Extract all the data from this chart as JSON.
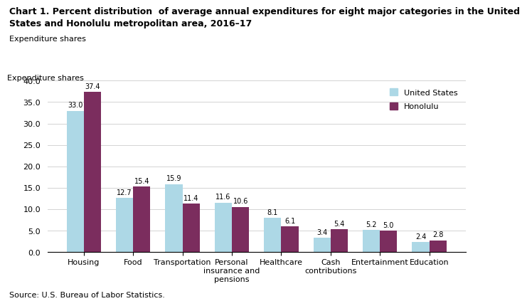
{
  "title_line1": "Chart 1. Percent distribution  of average annual expenditures for eight major categories in the United",
  "title_line2": "States and Honolulu metropolitan area, 2016–17",
  "ylabel": "Expenditure shares",
  "source": "Source: U.S. Bureau of Labor Statistics.",
  "categories": [
    "Housing",
    "Food",
    "Transportation",
    "Personal\ninsurance and\npensions",
    "Healthcare",
    "Cash\ncontributions",
    "Entertainment",
    "Education"
  ],
  "us_values": [
    33.0,
    12.7,
    15.9,
    11.6,
    8.1,
    3.4,
    5.2,
    2.4
  ],
  "honolulu_values": [
    37.4,
    15.4,
    11.4,
    10.6,
    6.1,
    5.4,
    5.0,
    2.8
  ],
  "us_color": "#add8e6",
  "honolulu_color": "#7B2D5E",
  "ylim": [
    0,
    40.0
  ],
  "yticks": [
    0.0,
    5.0,
    10.0,
    15.0,
    20.0,
    25.0,
    30.0,
    35.0,
    40.0
  ],
  "bar_width": 0.35,
  "legend_labels": [
    "United States",
    "Honolulu"
  ],
  "title_fontsize": 9,
  "label_fontsize": 8,
  "tick_fontsize": 8,
  "value_fontsize": 7
}
